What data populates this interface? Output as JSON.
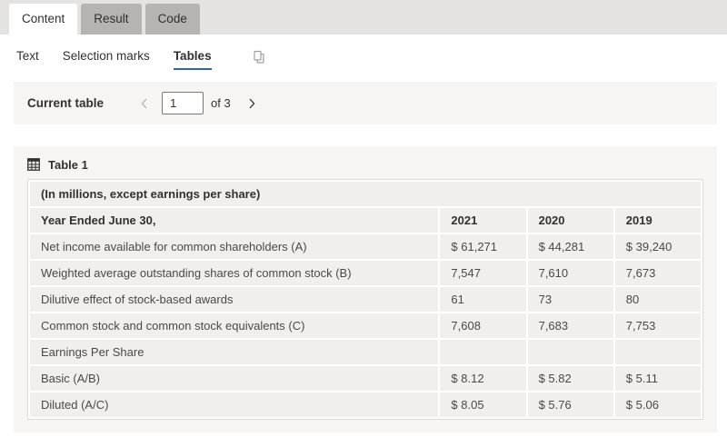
{
  "tabs": {
    "items": [
      {
        "label": "Content",
        "active": true
      },
      {
        "label": "Result",
        "active": false
      },
      {
        "label": "Code",
        "active": false
      }
    ]
  },
  "pivot": {
    "items": [
      {
        "label": "Text",
        "active": false
      },
      {
        "label": "Selection marks",
        "active": false
      },
      {
        "label": "Tables",
        "active": true
      }
    ]
  },
  "icons": {
    "copy": "copy-icon",
    "table": "table-grid-icon",
    "prev": "chevron-left-icon",
    "next": "chevron-right-icon"
  },
  "pagination": {
    "label": "Current table",
    "current": "1",
    "of_label": "of 3"
  },
  "table_panel": {
    "title": "Table 1"
  },
  "table": {
    "caption_row": "(In millions, except earnings per share)",
    "header": [
      "Year Ended June 30,",
      "2021",
      "2020",
      "2019"
    ],
    "rows": [
      [
        "Net income available for common shareholders (A)",
        "$ 61,271",
        "$ 44,281",
        "$ 39,240"
      ],
      [
        "Weighted average outstanding shares of common stock (B)",
        "7,547",
        "7,610",
        "7,673"
      ],
      [
        "Dilutive effect of stock-based awards",
        "61",
        "73",
        "80"
      ],
      [
        "Common stock and common stock equivalents (C)",
        "7,608",
        "7,683",
        "7,753"
      ],
      [
        "Earnings Per Share",
        "",
        "",
        ""
      ],
      [
        "Basic (A/B)",
        "$ 8.12",
        "$ 5.82",
        "$ 5.11"
      ],
      [
        "Diluted (A/C)",
        "$ 8.05",
        "$ 5.76",
        "$ 5.06"
      ]
    ]
  },
  "colors": {
    "accent": "#2b63c6",
    "tab_strip_bg": "#e5e3e1",
    "inactive_tab_bg": "#b6b3b0",
    "panel_bg": "#f6f5f3",
    "cell_bg": "#f1efee",
    "text": "#323130"
  }
}
